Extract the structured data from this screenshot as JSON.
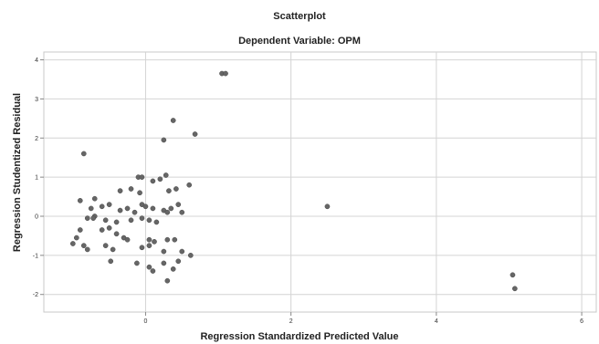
{
  "chart_data": {
    "type": "scatter",
    "title": "Scatterplot",
    "subtitle": "Dependent Variable: OPM",
    "xlabel": "Regression Standardized Predicted Value",
    "ylabel": "Regression Studentized Residual",
    "xlim": [
      -1.4,
      6.2
    ],
    "ylim": [
      -2.45,
      4.2
    ],
    "x_ticks": [
      "0",
      "2",
      "4",
      "6"
    ],
    "x_tick_values": [
      0,
      2,
      4,
      6
    ],
    "y_ticks": [
      "4",
      "3",
      "2",
      "1",
      "0",
      "-1",
      "-2"
    ],
    "y_tick_values": [
      4,
      3,
      2,
      1,
      0,
      -1,
      -2
    ],
    "grid": true,
    "point_color": "#666666",
    "points": [
      [
        1.05,
        3.65
      ],
      [
        1.1,
        3.65
      ],
      [
        0.38,
        2.45
      ],
      [
        0.68,
        2.1
      ],
      [
        0.25,
        1.95
      ],
      [
        -0.85,
        1.6
      ],
      [
        0.28,
        1.05
      ],
      [
        -0.1,
        1.0
      ],
      [
        -0.05,
        1.0
      ],
      [
        0.1,
        0.9
      ],
      [
        0.2,
        0.95
      ],
      [
        0.6,
        0.8
      ],
      [
        0.42,
        0.7
      ],
      [
        0.32,
        0.65
      ],
      [
        -0.35,
        0.65
      ],
      [
        -0.2,
        0.7
      ],
      [
        -0.08,
        0.6
      ],
      [
        -0.7,
        0.45
      ],
      [
        -0.9,
        0.4
      ],
      [
        -0.5,
        0.3
      ],
      [
        -0.6,
        0.25
      ],
      [
        -0.75,
        0.2
      ],
      [
        -0.25,
        0.2
      ],
      [
        -0.35,
        0.15
      ],
      [
        -0.15,
        0.1
      ],
      [
        -0.05,
        0.3
      ],
      [
        0.0,
        0.25
      ],
      [
        0.1,
        0.2
      ],
      [
        0.25,
        0.15
      ],
      [
        0.35,
        0.2
      ],
      [
        0.3,
        0.1
      ],
      [
        0.45,
        0.3
      ],
      [
        0.5,
        0.1
      ],
      [
        -0.7,
        0.0
      ],
      [
        -0.72,
        -0.05
      ],
      [
        -0.8,
        -0.05
      ],
      [
        -0.55,
        -0.1
      ],
      [
        -0.4,
        -0.15
      ],
      [
        -0.2,
        -0.1
      ],
      [
        -0.05,
        -0.05
      ],
      [
        0.05,
        -0.1
      ],
      [
        0.15,
        -0.15
      ],
      [
        -0.5,
        -0.3
      ],
      [
        -0.6,
        -0.35
      ],
      [
        -0.9,
        -0.35
      ],
      [
        -0.95,
        -0.55
      ],
      [
        -0.4,
        -0.45
      ],
      [
        -0.3,
        -0.55
      ],
      [
        -0.25,
        -0.6
      ],
      [
        0.05,
        -0.6
      ],
      [
        0.12,
        -0.65
      ],
      [
        0.3,
        -0.6
      ],
      [
        0.4,
        -0.6
      ],
      [
        -0.55,
        -0.75
      ],
      [
        -0.85,
        -0.75
      ],
      [
        -1.0,
        -0.7
      ],
      [
        -0.8,
        -0.85
      ],
      [
        -0.45,
        -0.85
      ],
      [
        -0.05,
        -0.8
      ],
      [
        0.05,
        -0.75
      ],
      [
        0.25,
        -0.9
      ],
      [
        0.5,
        -0.9
      ],
      [
        0.62,
        -1.0
      ],
      [
        -0.48,
        -1.15
      ],
      [
        -0.12,
        -1.2
      ],
      [
        0.25,
        -1.2
      ],
      [
        0.45,
        -1.15
      ],
      [
        0.05,
        -1.3
      ],
      [
        0.1,
        -1.4
      ],
      [
        0.38,
        -1.35
      ],
      [
        0.3,
        -1.65
      ],
      [
        2.5,
        0.25
      ],
      [
        5.05,
        -1.5
      ],
      [
        5.08,
        -1.85
      ]
    ]
  }
}
